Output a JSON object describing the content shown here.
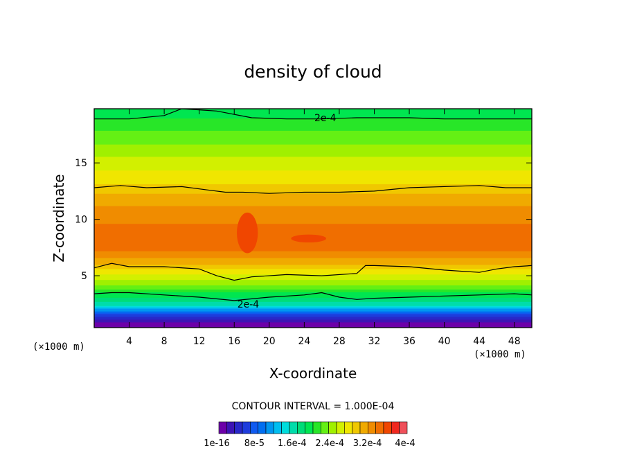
{
  "chart_data": {
    "type": "heatmap",
    "title": "density of cloud",
    "xlabel": "X-coordinate",
    "ylabel": "Z-coordinate",
    "x_unit": "(×1000 m)",
    "z_unit": "(×1000 m)",
    "xlim": [
      0,
      50
    ],
    "ylim": [
      0.4,
      19.8
    ],
    "x_ticks": [
      4,
      8,
      12,
      16,
      20,
      24,
      28,
      32,
      36,
      40,
      44,
      48
    ],
    "y_ticks": [
      5,
      10,
      15
    ],
    "contour_interval_text": "CONTOUR INTERVAL = 1.000E-04",
    "contour_label": "2e-4",
    "colorbar": {
      "min": 1e-16,
      "max": 0.0004,
      "levels": 24,
      "tick_labels": [
        "1e-16",
        "8e-5",
        "1.6e-4",
        "2.4e-4",
        "3.2e-4",
        "4e-4"
      ],
      "colors": [
        "#6c00a8",
        "#3c14b4",
        "#2828c8",
        "#1e3cdc",
        "#0f5af0",
        "#006ef0",
        "#0096f0",
        "#00bef0",
        "#00dcdc",
        "#00dcaa",
        "#00dc78",
        "#00e650",
        "#28e628",
        "#64f014",
        "#a0f000",
        "#d2f000",
        "#f0e600",
        "#f0c800",
        "#f0aa00",
        "#f08c00",
        "#f06e00",
        "#f04600",
        "#f0281e",
        "#f0505a"
      ]
    },
    "profile": {
      "z": [
        0.6,
        1.0,
        1.5,
        2.0,
        2.5,
        3.0,
        3.5,
        4.0,
        5.0,
        6.0,
        7.0,
        8.0,
        9.0,
        10.0,
        11.0,
        12.0,
        13.0,
        14.0,
        15.0,
        16.0,
        17.0,
        18.0,
        19.0,
        19.8
      ],
      "density": [
        0.0,
        2e-05,
        6e-05,
        0.00011,
        0.00016,
        0.00018,
        0.0002,
        0.00023,
        0.00026,
        0.0003,
        0.00033,
        0.000345,
        0.00034,
        0.00033,
        0.00032,
        0.000305,
        0.000285,
        0.00027,
        0.00026,
        0.00024,
        0.00023,
        0.000215,
        0.0002,
        0.00019
      ]
    },
    "contours_2e-4": [
      {
        "x": [
          0,
          4,
          8,
          10,
          14,
          18,
          22,
          26,
          30,
          36,
          40,
          44,
          48,
          50
        ],
        "z": [
          18.9,
          18.9,
          19.2,
          19.8,
          19.6,
          19.0,
          18.9,
          18.9,
          19.0,
          19.0,
          18.9,
          18.9,
          18.9,
          18.9
        ]
      },
      {
        "x": [
          0,
          3,
          6,
          10,
          13,
          15,
          17,
          20,
          24,
          28,
          32,
          36,
          40,
          44,
          47,
          50
        ],
        "z": [
          12.8,
          13.0,
          12.8,
          12.9,
          12.6,
          12.4,
          12.4,
          12.3,
          12.4,
          12.4,
          12.5,
          12.8,
          12.9,
          13.0,
          12.8,
          12.8
        ]
      },
      {
        "x": [
          0,
          2,
          4,
          8,
          12,
          14,
          16,
          18,
          22,
          26,
          30,
          31,
          32,
          36,
          40,
          42,
          44,
          46,
          48,
          50
        ],
        "z": [
          5.7,
          6.1,
          5.8,
          5.8,
          5.6,
          5.0,
          4.6,
          4.9,
          5.1,
          5.0,
          5.2,
          5.9,
          5.9,
          5.8,
          5.5,
          5.4,
          5.3,
          5.6,
          5.8,
          5.9
        ]
      },
      {
        "x": [
          0,
          2,
          4,
          8,
          12,
          16,
          20,
          24,
          26,
          28,
          30,
          32,
          36,
          40,
          44,
          48,
          50
        ],
        "z": [
          3.4,
          3.5,
          3.5,
          3.3,
          3.1,
          2.8,
          3.1,
          3.3,
          3.5,
          3.1,
          2.9,
          3.0,
          3.1,
          3.2,
          3.3,
          3.4,
          3.3
        ]
      }
    ],
    "max_core": [
      {
        "cx": 17.5,
        "cz": 8.8,
        "rx": 1.2,
        "rz": 1.8,
        "level": 0.00036
      },
      {
        "cx": 24.5,
        "cz": 8.3,
        "rx": 2.0,
        "rz": 0.35,
        "level": 0.00036
      }
    ]
  }
}
